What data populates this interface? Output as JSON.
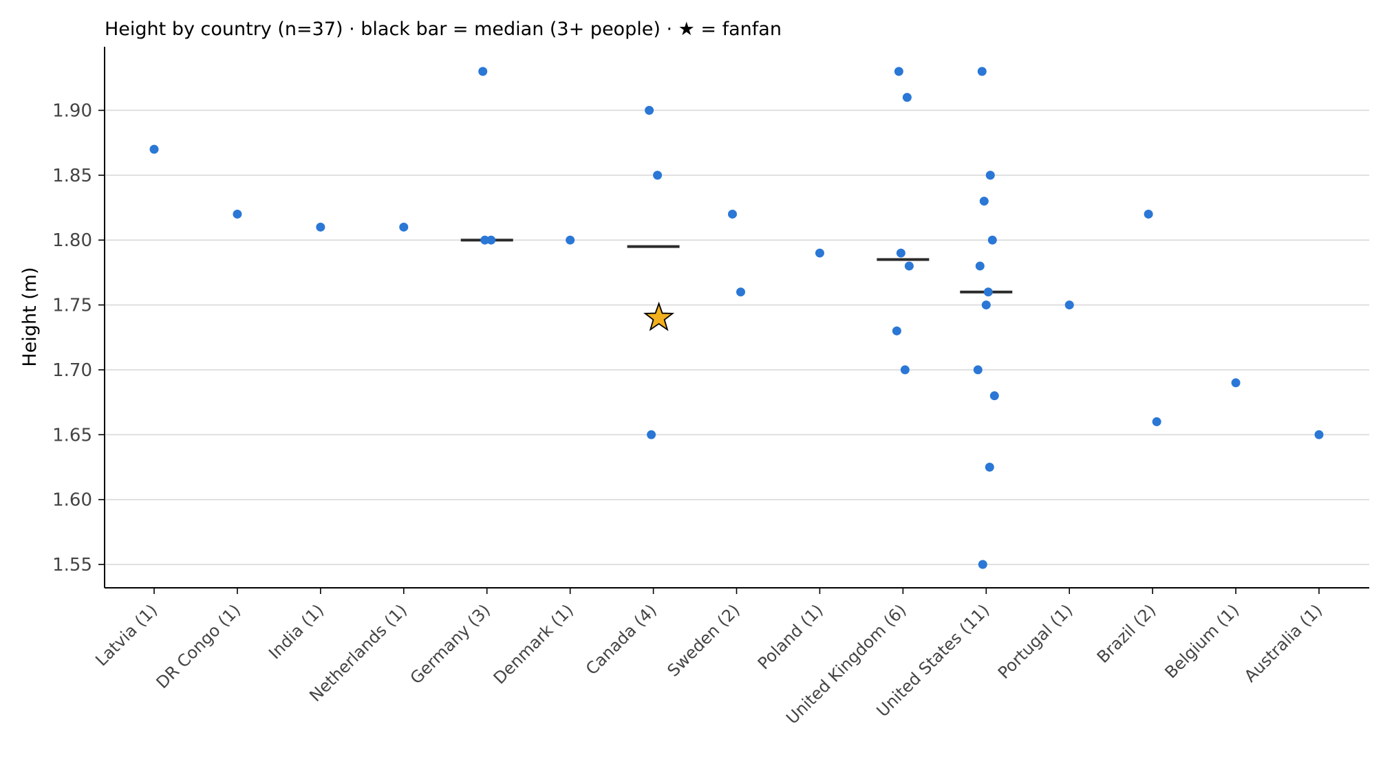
{
  "chart_data": {
    "type": "scatter",
    "title": "Height by country (n=37) · black bar = median (3+ people) · ★ = fanfan",
    "xlabel": "",
    "ylabel": "Height (m)",
    "ylim": [
      1.532,
      1.949
    ],
    "yticks": [
      1.55,
      1.6,
      1.65,
      1.7,
      1.75,
      1.8,
      1.85,
      1.9
    ],
    "ytick_labels": [
      "1.55",
      "1.60",
      "1.65",
      "1.70",
      "1.75",
      "1.80",
      "1.85",
      "1.90"
    ],
    "grid": "horizontal",
    "categories": [
      "Latvia (1)",
      "DR Congo (1)",
      "India (1)",
      "Netherlands (1)",
      "Germany (3)",
      "Denmark (1)",
      "Canada (4)",
      "Sweden (2)",
      "Poland (1)",
      "United Kingdom (6)",
      "United States (11)",
      "Portugal (1)",
      "Brazil (2)",
      "Belgium (1)",
      "Australia (1)"
    ],
    "series": [
      {
        "color": "#2a77d6",
        "points": [
          {
            "category": "Latvia (1)",
            "value": 1.87
          },
          {
            "category": "DR Congo (1)",
            "value": 1.82
          },
          {
            "category": "India (1)",
            "value": 1.81
          },
          {
            "category": "Netherlands (1)",
            "value": 1.81
          },
          {
            "category": "Germany (3)",
            "value": 1.93
          },
          {
            "category": "Germany (3)",
            "value": 1.8
          },
          {
            "category": "Germany (3)",
            "value": 1.8
          },
          {
            "category": "Denmark (1)",
            "value": 1.8
          },
          {
            "category": "Canada (4)",
            "value": 1.9
          },
          {
            "category": "Canada (4)",
            "value": 1.85
          },
          {
            "category": "Canada (4)",
            "value": 1.65
          },
          {
            "category": "Sweden (2)",
            "value": 1.82
          },
          {
            "category": "Sweden (2)",
            "value": 1.76
          },
          {
            "category": "Poland (1)",
            "value": 1.79
          },
          {
            "category": "United Kingdom (6)",
            "value": 1.93
          },
          {
            "category": "United Kingdom (6)",
            "value": 1.91
          },
          {
            "category": "United Kingdom (6)",
            "value": 1.79
          },
          {
            "category": "United Kingdom (6)",
            "value": 1.78
          },
          {
            "category": "United Kingdom (6)",
            "value": 1.73
          },
          {
            "category": "United Kingdom (6)",
            "value": 1.7
          },
          {
            "category": "United States (11)",
            "value": 1.93
          },
          {
            "category": "United States (11)",
            "value": 1.85
          },
          {
            "category": "United States (11)",
            "value": 1.83
          },
          {
            "category": "United States (11)",
            "value": 1.8
          },
          {
            "category": "United States (11)",
            "value": 1.78
          },
          {
            "category": "United States (11)",
            "value": 1.76
          },
          {
            "category": "United States (11)",
            "value": 1.75
          },
          {
            "category": "United States (11)",
            "value": 1.7
          },
          {
            "category": "United States (11)",
            "value": 1.68
          },
          {
            "category": "United States (11)",
            "value": 1.625
          },
          {
            "category": "United States (11)",
            "value": 1.55
          },
          {
            "category": "Portugal (1)",
            "value": 1.75
          },
          {
            "category": "Brazil (2)",
            "value": 1.82
          },
          {
            "category": "Brazil (2)",
            "value": 1.66
          },
          {
            "category": "Belgium (1)",
            "value": 1.69
          },
          {
            "category": "Australia (1)",
            "value": 1.65
          }
        ]
      }
    ],
    "highlight": {
      "category": "Canada (4)",
      "value": 1.74,
      "marker": "star",
      "color": "#f2b01e"
    },
    "medians": [
      {
        "category": "Germany (3)",
        "value": 1.8
      },
      {
        "category": "Canada (4)",
        "value": 1.795
      },
      {
        "category": "United Kingdom (6)",
        "value": 1.785
      },
      {
        "category": "United States (11)",
        "value": 1.76
      }
    ],
    "median_color": "#2b2b2b"
  }
}
